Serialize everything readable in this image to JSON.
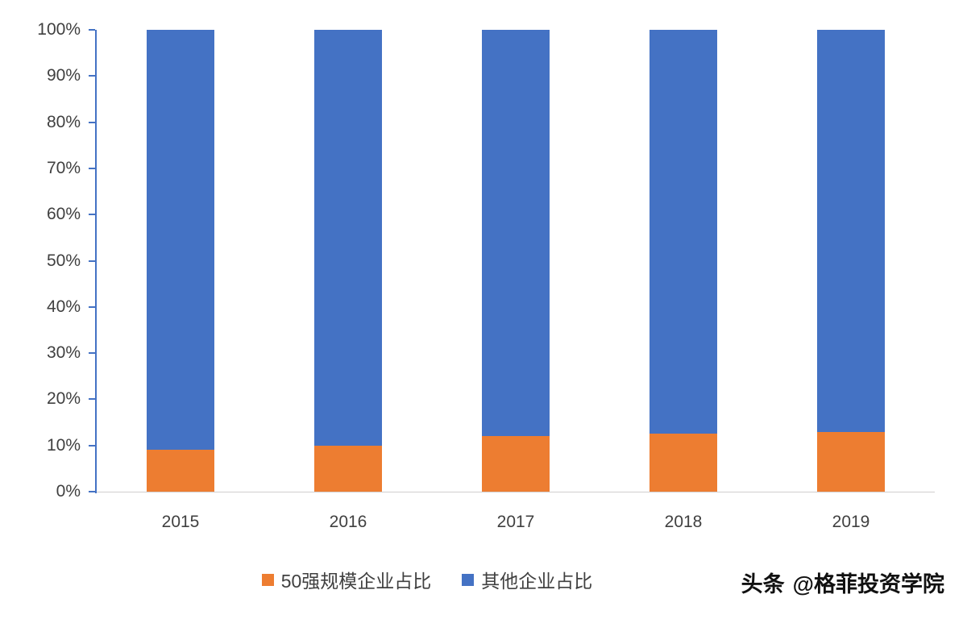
{
  "chart_data": {
    "type": "bar",
    "stacked": true,
    "title": "",
    "xlabel": "",
    "ylabel": "",
    "categories": [
      "2015",
      "2016",
      "2017",
      "2018",
      "2019"
    ],
    "series": [
      {
        "name": "50强规模企业占比",
        "color": "#ED7D31",
        "values": [
          9,
          10,
          12,
          12.5,
          13
        ]
      },
      {
        "name": "其他企业占比",
        "color": "#4472C4",
        "values": [
          91,
          90,
          88,
          87.5,
          87
        ]
      }
    ],
    "ylim": [
      0,
      100
    ],
    "yticks": [
      0,
      10,
      20,
      30,
      40,
      50,
      60,
      70,
      80,
      90,
      100
    ],
    "ytick_suffix": "%",
    "grid": false,
    "legend_position": "bottom"
  },
  "axis": {
    "line_color": "#4472C4",
    "baseline_color": "#D0CECE",
    "text_color": "#404040"
  },
  "watermark": {
    "brand": "头条",
    "handle": "@格菲投资学院"
  }
}
